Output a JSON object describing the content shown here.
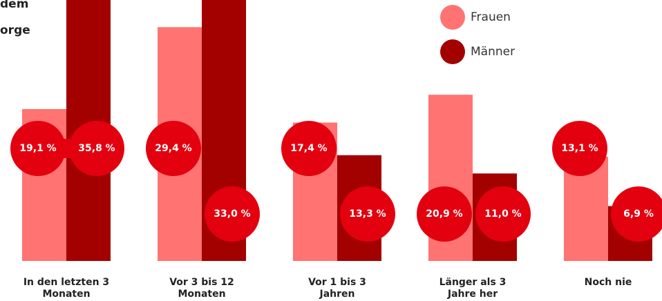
{
  "chart_data": {
    "type": "bar",
    "title_lines": [
      "dem",
      "orge"
    ],
    "categories": [
      "In den letzten 3 Monaten",
      "Vor 3 bis 12 Monaten",
      "Vor 1 bis 3 Jahren",
      "Länger als 3 Jahre her",
      "Noch nie"
    ],
    "series": [
      {
        "name": "Frauen",
        "color": "#ff7373",
        "values": [
          19.1,
          29.4,
          17.4,
          20.9,
          13.1
        ],
        "value_labels": [
          "19,1 %",
          "29,4 %",
          "17,4 %",
          "20,9 %",
          "13,1 %"
        ]
      },
      {
        "name": "Männer",
        "color": "#a30000",
        "values": [
          35.8,
          33.0,
          13.3,
          11.0,
          6.9
        ],
        "value_labels": [
          "35,8 %",
          "33,0 %",
          "13,3 %",
          "11,0 %",
          "6,9 %"
        ]
      }
    ],
    "label_color": "#e3000f"
  }
}
